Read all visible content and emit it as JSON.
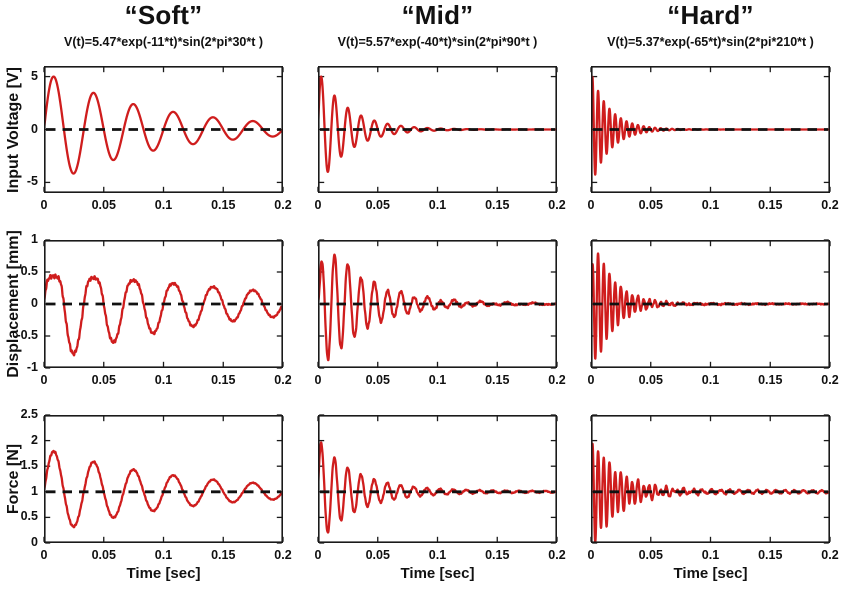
{
  "chart_data": {
    "type": "line",
    "layout": "3x3 grid of subplots (columns = stiffness condition, rows = measured quantity)",
    "background": "#ffffff",
    "line_color": "#cf1d1d",
    "baseline_color": "#111111",
    "axis_color": "#1a1a1a",
    "grid": false,
    "legend": "none",
    "columns": [
      {
        "title": "“Soft”",
        "formula": "V(t)=5.47*exp(-11*t)*sin(2*pi*30*t )"
      },
      {
        "title": "“Mid”",
        "formula": "V(t)=5.57*exp(-40*t)*sin(2*pi*90*t )"
      },
      {
        "title": "“Hard”",
        "formula": "V(t)=5.37*exp(-65*t)*sin(2*pi*210*t )"
      }
    ],
    "rows": [
      {
        "ylabel": "Input Voltage [V]",
        "ylim": [
          -6,
          6
        ],
        "yticks": [
          5,
          0,
          -5
        ],
        "baseline": 0
      },
      {
        "ylabel": "Displacement [mm]",
        "ylim": [
          -1,
          1
        ],
        "yticks": [
          1,
          0.5,
          0,
          -0.5,
          -1
        ],
        "baseline": 0
      },
      {
        "ylabel": "Force [N]",
        "ylim": [
          0,
          2.5
        ],
        "yticks": [
          2.5,
          2,
          1.5,
          1,
          0.5,
          0
        ],
        "baseline": 1
      }
    ],
    "xlabel": "Time [sec]",
    "xlim": [
      0,
      0.2
    ],
    "xticks": [
      0,
      0.05,
      0.1,
      0.15,
      0.2
    ],
    "baseline_linestyle": "dashed",
    "signals": [
      [
        {
          "base": 0,
          "amp": 5.47,
          "decay": 11,
          "freq": 30
        },
        {
          "base": 0,
          "amp": 5.57,
          "decay": 40,
          "freq": 90
        },
        {
          "base": 0,
          "amp": 5.37,
          "decay": 65,
          "freq": 210
        }
      ],
      [
        {
          "base": 0,
          "amp": 0.95,
          "decay": 8,
          "freq": 30,
          "satPos": 0.45,
          "noise": 0.025
        },
        {
          "base": 0,
          "amp": 1.2,
          "decay": 28,
          "freq": 90,
          "rise": 280,
          "noise": 0.02,
          "ripple": {
            "amp": 0.035,
            "freq": 45,
            "decay": 6
          }
        },
        {
          "base": 0,
          "amp": 1.2,
          "decay": 60,
          "freq": 210,
          "rise": 600,
          "noise": 0.015,
          "ripple": {
            "amp": 0.02,
            "freq": 80,
            "decay": 8
          }
        }
      ],
      [
        {
          "base": 1,
          "amp": 0.85,
          "decay": 9,
          "freq": 30,
          "noise": 0.015
        },
        {
          "base": 1,
          "amp": 1.0,
          "decay": 32,
          "freq": 90,
          "noise": 0.015,
          "ripple": {
            "amp": 0.04,
            "freq": 90,
            "decay": 5
          }
        },
        {
          "base": 1,
          "amp": 1.1,
          "decay": 45,
          "freq": 210,
          "rise": 1500,
          "noise": 0.02,
          "ripple": {
            "amp": 0.06,
            "freq": 130,
            "decay": 4
          }
        }
      ]
    ]
  }
}
